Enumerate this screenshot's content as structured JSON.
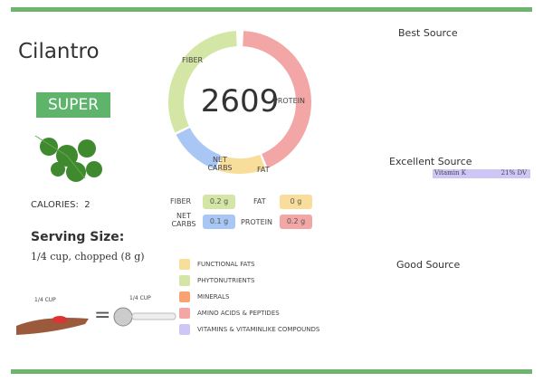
{
  "food": {
    "name": "Cilantro",
    "rating": "SUPER",
    "calories_label": "CALORIES:",
    "calories": "2",
    "serving_title": "Serving Size:",
    "serving": "1/4 cup, chopped (8 g)",
    "cup_label_left": "1/4 CUP",
    "cup_label_right": "1/4 CUP",
    "equals": "="
  },
  "donut": {
    "total": "2609",
    "segments": [
      {
        "label": "FIBER",
        "color": "#d4e6a5"
      },
      {
        "label": "PROTEIN",
        "color": "#f3a6a6"
      },
      {
        "label": "FAT",
        "color": "#f8de9a"
      },
      {
        "label": "NET CARBS",
        "color": "#a9c7f5"
      }
    ]
  },
  "macros": {
    "fiber": {
      "label": "FIBER",
      "value": "0.2 g"
    },
    "fat": {
      "label": "FAT",
      "value": "0 g"
    },
    "net_carbs": {
      "label": "NET CARBS",
      "value": "0.1 g"
    },
    "protein": {
      "label": "PROTEIN",
      "value": "0.2 g"
    }
  },
  "legend": [
    {
      "label": "FUNCTIONAL  FATS",
      "color": "#f8de9a"
    },
    {
      "label": "PHYTONUTRIENTS",
      "color": "#d4e6a5"
    },
    {
      "label": "MINERALS",
      "color": "#fba274"
    },
    {
      "label": "AMINO ACIDS & PEPTIDES",
      "color": "#f3a6a6"
    },
    {
      "label": "VITAMINS & VITAMINLIKE COMPOUNDS",
      "color": "#cfc6f7"
    }
  ],
  "sources": {
    "best": "Best Source",
    "excellent": "Excellent Source",
    "good": "Good Source",
    "excellent_items": [
      {
        "name": "Vitamin K",
        "dv": "21% DV",
        "color": "#cfc6f7"
      }
    ]
  }
}
